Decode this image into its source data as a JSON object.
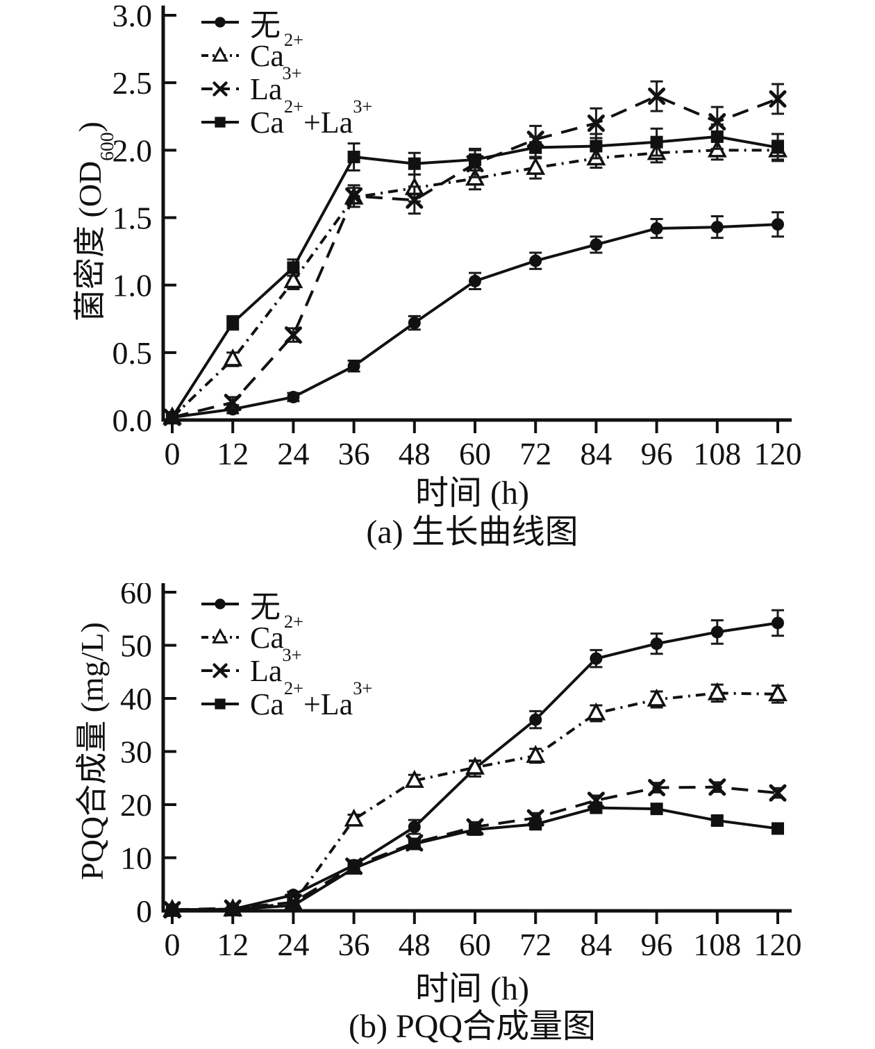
{
  "chart_data": [
    {
      "type": "line",
      "caption": "(a) 生长曲线图",
      "xlabel": "时间 (h)",
      "ylabel_html": "菌密度 (OD<sub>600</sub>)",
      "x": [
        0,
        12,
        24,
        36,
        48,
        60,
        72,
        84,
        96,
        108,
        120
      ],
      "xlim": [
        0,
        120
      ],
      "ylim": [
        0,
        3.0
      ],
      "xtick_values": [
        0,
        12,
        24,
        36,
        48,
        60,
        72,
        84,
        96,
        108,
        120
      ],
      "xtick_labels": [
        "0",
        "12",
        "24",
        "36",
        "48",
        "60",
        "72",
        "84",
        "96",
        "108",
        "120"
      ],
      "ytick_values": [
        0,
        0.5,
        1.0,
        1.5,
        2.0,
        2.5,
        3.0
      ],
      "ytick_labels": [
        "0.0",
        "0.5",
        "1.0",
        "1.5",
        "2.0",
        "2.5",
        "3.0"
      ],
      "legend_position": "top-left",
      "grid": false,
      "error_bars": true,
      "series": [
        {
          "key": "none",
          "name": "无",
          "label_html": "无",
          "marker": "circle-filled",
          "line": "solid",
          "color": "#111111",
          "values": [
            0.02,
            0.08,
            0.17,
            0.4,
            0.72,
            1.03,
            1.18,
            1.3,
            1.42,
            1.43,
            1.45
          ],
          "errors": [
            0.02,
            0.03,
            0.03,
            0.04,
            0.05,
            0.06,
            0.06,
            0.06,
            0.07,
            0.08,
            0.09
          ]
        },
        {
          "key": "ca",
          "name": "Ca²⁺",
          "label_html": "Ca<sup>2+</sup>",
          "marker": "triangle-open",
          "line": "dashdot",
          "color": "#111111",
          "values": [
            0.02,
            0.45,
            1.03,
            1.65,
            1.72,
            1.79,
            1.87,
            1.94,
            1.98,
            2.0,
            2.0
          ],
          "errors": [
            0.02,
            0.05,
            0.06,
            0.07,
            0.1,
            0.08,
            0.08,
            0.07,
            0.07,
            0.07,
            0.07
          ]
        },
        {
          "key": "la",
          "name": "La³⁺",
          "label_html": "La<sup>3+</sup>",
          "marker": "x-cross",
          "line": "dashed",
          "color": "#111111",
          "values": [
            0.02,
            0.13,
            0.63,
            1.66,
            1.63,
            1.9,
            2.08,
            2.2,
            2.4,
            2.21,
            2.38
          ],
          "errors": [
            0.02,
            0.04,
            0.05,
            0.08,
            0.1,
            0.1,
            0.1,
            0.11,
            0.11,
            0.11,
            0.11
          ]
        },
        {
          "key": "ca_la",
          "name": "Ca²⁺+La³⁺",
          "label_html": "Ca<sup>2+</sup>+La<sup>3+</sup>",
          "marker": "square-filled",
          "line": "solid",
          "color": "#111111",
          "values": [
            0.02,
            0.72,
            1.13,
            1.95,
            1.9,
            1.93,
            2.02,
            2.03,
            2.06,
            2.1,
            2.02
          ],
          "errors": [
            0.02,
            0.05,
            0.06,
            0.1,
            0.08,
            0.08,
            0.08,
            0.09,
            0.1,
            0.09,
            0.1
          ]
        }
      ]
    },
    {
      "type": "line",
      "caption": "(b) PQQ合成量图",
      "xlabel": "时间 (h)",
      "ylabel_html": "PQQ合成量 (mg/L)",
      "x": [
        0,
        12,
        24,
        36,
        48,
        60,
        72,
        84,
        96,
        108,
        120
      ],
      "xlim": [
        0,
        120
      ],
      "ylim": [
        0,
        60
      ],
      "xtick_values": [
        0,
        12,
        24,
        36,
        48,
        60,
        72,
        84,
        96,
        108,
        120
      ],
      "xtick_labels": [
        "0",
        "12",
        "24",
        "36",
        "48",
        "60",
        "72",
        "84",
        "96",
        "108",
        "120"
      ],
      "ytick_values": [
        0,
        10,
        20,
        30,
        40,
        50,
        60
      ],
      "ytick_labels": [
        "0",
        "10",
        "20",
        "30",
        "40",
        "50",
        "60"
      ],
      "legend_position": "top-left",
      "grid": false,
      "error_bars": true,
      "series": [
        {
          "key": "none",
          "name": "无",
          "label_html": "无",
          "marker": "circle-filled",
          "line": "solid",
          "color": "#111111",
          "values": [
            0.2,
            0.3,
            3.0,
            8.6,
            15.8,
            26.8,
            36.0,
            47.5,
            50.3,
            52.5,
            54.2
          ],
          "errors": [
            0.3,
            0.3,
            0.6,
            0.9,
            1.3,
            1.5,
            1.6,
            1.6,
            1.9,
            2.2,
            2.4
          ]
        },
        {
          "key": "ca",
          "name": "Ca²⁺",
          "label_html": "Ca<sup>2+</sup>",
          "marker": "triangle-open",
          "line": "dashdot",
          "color": "#111111",
          "values": [
            0.2,
            0.3,
            1.4,
            17.2,
            24.5,
            27.0,
            29.2,
            37.2,
            39.8,
            41.0,
            40.8
          ],
          "errors": [
            0.3,
            0.3,
            0.5,
            0.9,
            1.1,
            1.2,
            1.3,
            1.5,
            1.5,
            1.6,
            1.6
          ]
        },
        {
          "key": "la",
          "name": "La³⁺",
          "label_html": "La<sup>3+</sup>",
          "marker": "x-cross",
          "line": "dashed",
          "color": "#111111",
          "values": [
            0.2,
            0.5,
            1.6,
            8.4,
            12.8,
            15.8,
            17.5,
            20.8,
            23.2,
            23.3,
            22.2
          ],
          "errors": [
            0.3,
            0.3,
            0.4,
            0.7,
            0.8,
            0.9,
            0.9,
            0.9,
            0.9,
            0.9,
            0.9
          ]
        },
        {
          "key": "ca_la",
          "name": "Ca²⁺+La³⁺",
          "label_html": "Ca<sup>2+</sup>+La<sup>3+</sup>",
          "marker": "square-filled",
          "line": "solid",
          "color": "#111111",
          "values": [
            0.2,
            0.3,
            1.0,
            8.0,
            12.6,
            15.3,
            16.3,
            19.4,
            19.2,
            17.0,
            15.5
          ],
          "errors": [
            0.3,
            0.3,
            0.4,
            0.7,
            0.8,
            0.8,
            0.8,
            0.9,
            0.8,
            0.8,
            0.8
          ]
        }
      ]
    }
  ]
}
